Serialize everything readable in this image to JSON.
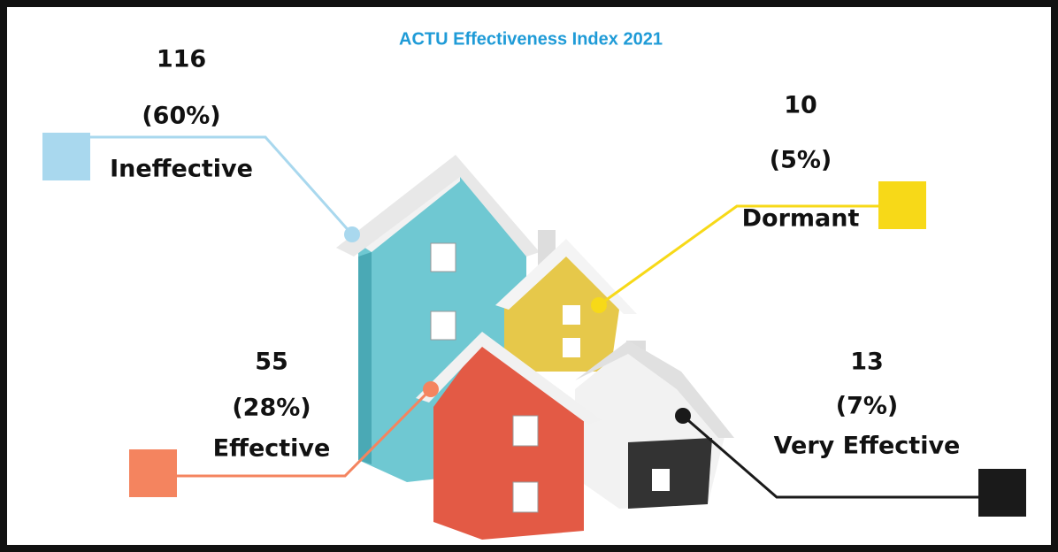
{
  "title": "ACTU Effectiveness Index 2021",
  "items": [
    {
      "count": 116,
      "percent": "(60%)",
      "label": "Ineffective",
      "color": "#a9d8ee"
    },
    {
      "count": 10,
      "percent": "(5%)",
      "label": "Dormant",
      "color": "#f7d918"
    },
    {
      "count": 55,
      "percent": "(28%)",
      "label": "Effective",
      "color": "#f4845f"
    },
    {
      "count": 13,
      "percent": "(7%)",
      "label": "Very Effective",
      "color": "#1a1a1a"
    }
  ]
}
